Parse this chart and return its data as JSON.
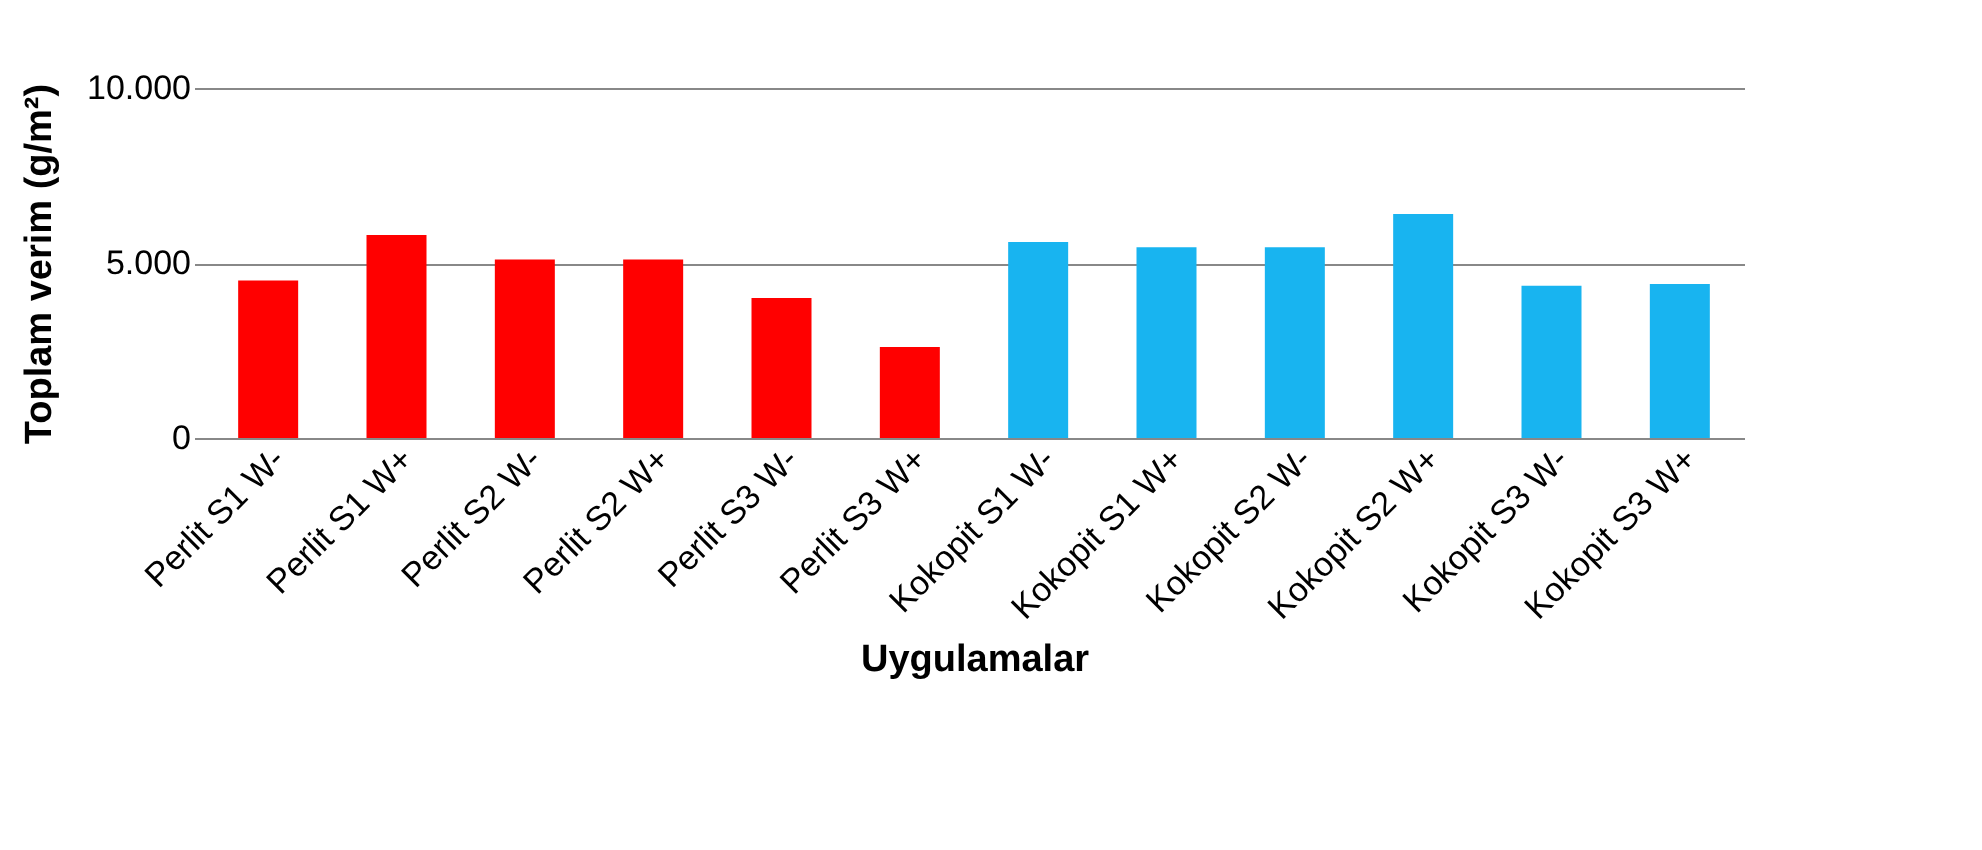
{
  "chart_data": {
    "type": "bar",
    "xlabel": "Uygulamalar",
    "ylabel": "Toplam verim (g/m²)",
    "categories": [
      "Perlit S1 W-",
      "Perlit S1 W+",
      "Perlit S2 W-",
      "Perlit S2 W+",
      "Perlit S3 W-",
      "Perlit S3 W+",
      "Kokopit S1 W-",
      "Kokopit S1 W+",
      "Kokopit S2 W-",
      "Kokopit S2 W+",
      "Kokopit S3 W-",
      "Kokopit S3 W+"
    ],
    "values": [
      4500,
      5800,
      5100,
      5100,
      4000,
      2600,
      5600,
      5450,
      5450,
      6400,
      4350,
      4400
    ],
    "colors": [
      "#ff0000",
      "#ff0000",
      "#ff0000",
      "#ff0000",
      "#ff0000",
      "#ff0000",
      "#18b4f0",
      "#18b4f0",
      "#18b4f0",
      "#18b4f0",
      "#18b4f0",
      "#18b4f0"
    ],
    "ylim": [
      0,
      10000
    ],
    "yticks": [
      {
        "value": 0,
        "label": "0"
      },
      {
        "value": 5000,
        "label": "5.000"
      },
      {
        "value": 10000,
        "label": "10.000"
      }
    ],
    "grid": "y"
  }
}
